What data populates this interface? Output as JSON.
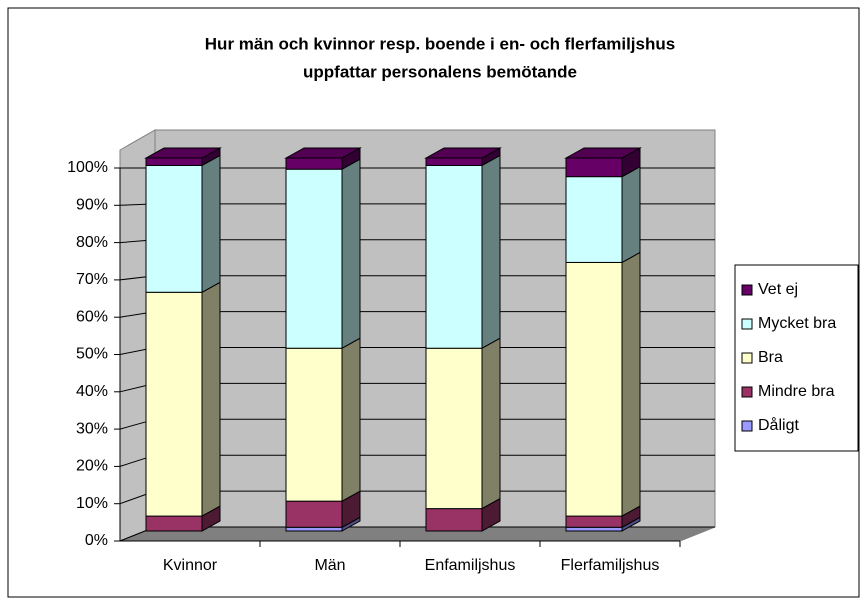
{
  "chart_data": {
    "type": "stacked_bar_3d",
    "title": "Hur män och kvinnor resp. boende i en- och flerfamiljshus",
    "subtitle": "uppfattar personalens bemötande",
    "categories": [
      "Kvinnor",
      "Män",
      "Enfamiljshus",
      "Flerfamiljshus"
    ],
    "series": [
      {
        "name": "Dåligt",
        "color": "#9999ff",
        "values": [
          0,
          1,
          0,
          1
        ]
      },
      {
        "name": "Mindre bra",
        "color": "#993366",
        "values": [
          4,
          7,
          6,
          3
        ]
      },
      {
        "name": "Bra",
        "color": "#ffffcc",
        "values": [
          60,
          41,
          43,
          68
        ]
      },
      {
        "name": "Mycket bra",
        "color": "#ccffff",
        "values": [
          34,
          48,
          49,
          23
        ]
      },
      {
        "name": "Vet ej",
        "color": "#660066",
        "values": [
          2,
          3,
          2,
          5
        ]
      }
    ],
    "ylim": [
      0,
      100
    ],
    "yticks": [
      {
        "value": 0,
        "label": "0%"
      },
      {
        "value": 10,
        "label": "10%"
      },
      {
        "value": 20,
        "label": "20%"
      },
      {
        "value": 30,
        "label": "30%"
      },
      {
        "value": 40,
        "label": "40%"
      },
      {
        "value": 50,
        "label": "50%"
      },
      {
        "value": 60,
        "label": "60%"
      },
      {
        "value": 70,
        "label": "70%"
      },
      {
        "value": 80,
        "label": "80%"
      },
      {
        "value": 90,
        "label": "90%"
      },
      {
        "value": 100,
        "label": "100%"
      }
    ],
    "grid": true,
    "legend": "right"
  }
}
